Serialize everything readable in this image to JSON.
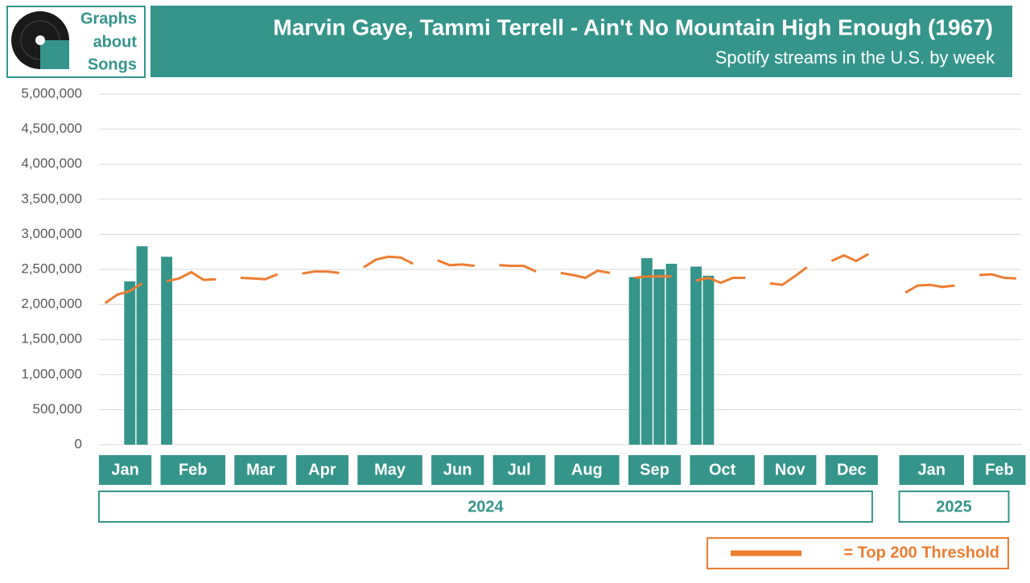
{
  "logo": [
    "Graphs",
    "about",
    "Songs"
  ],
  "chart_data": {
    "type": "bar",
    "title": "Marvin Gaye, Tammi Terrell - Ain't No Mountain High Enough (1967)",
    "subtitle": "Spotify streams in the U.S. by week",
    "ylim": [
      0,
      5000000
    ],
    "yticks": [
      0,
      {
        "value": 500000,
        "label": "500,000"
      },
      {
        "value": 1000000,
        "label": "1,000,000"
      },
      {
        "value": 1500000,
        "label": "1,500,000"
      },
      {
        "value": 2000000,
        "label": "2,000,000"
      },
      {
        "value": 2500000,
        "label": "2,500,000"
      },
      {
        "value": 3000000,
        "label": "3,000,000"
      },
      {
        "value": 3500000,
        "label": "3,500,000"
      },
      {
        "value": 4000000,
        "label": "4,000,000"
      },
      {
        "value": 4500000,
        "label": "4,500,000"
      },
      {
        "value": 5000000,
        "label": "5,000,000"
      }
    ],
    "grid": true,
    "bar_color": "#35958b",
    "line_color": "#ed7d31",
    "legend": "= Top 200 Threshold",
    "years": [
      {
        "label": "2024",
        "months": [
          {
            "label": "Jan",
            "streams": [
              null,
              null,
              2330000,
              2830000
            ],
            "threshold": [
              2020000,
              2140000,
              2190000,
              2300000
            ]
          },
          {
            "label": "Feb",
            "streams": [
              2680000,
              null,
              null,
              null,
              null
            ],
            "threshold": [
              2330000,
              2370000,
              2460000,
              2350000,
              2360000
            ]
          },
          {
            "label": "Mar",
            "streams": [
              null,
              null,
              null,
              null
            ],
            "threshold": [
              2380000,
              2370000,
              2360000,
              2430000
            ]
          },
          {
            "label": "Apr",
            "streams": [
              null,
              null,
              null,
              null
            ],
            "threshold": [
              2440000,
              2470000,
              2470000,
              2450000
            ]
          },
          {
            "label": "May",
            "streams": [
              null,
              null,
              null,
              null,
              null
            ],
            "threshold": [
              2530000,
              2640000,
              2680000,
              2670000,
              2580000
            ]
          },
          {
            "label": "Jun",
            "streams": [
              null,
              null,
              null,
              null
            ],
            "threshold": [
              2630000,
              2560000,
              2570000,
              2550000
            ]
          },
          {
            "label": "Jul",
            "streams": [
              null,
              null,
              null,
              null
            ],
            "threshold": [
              2560000,
              2550000,
              2550000,
              2470000
            ]
          },
          {
            "label": "Aug",
            "streams": [
              null,
              null,
              null,
              null,
              null
            ],
            "threshold": [
              2450000,
              2420000,
              2380000,
              2480000,
              2450000
            ]
          },
          {
            "label": "Sep",
            "streams": [
              2390000,
              2660000,
              2500000,
              2580000
            ],
            "threshold": [
              2380000,
              2400000,
              2400000,
              2400000
            ]
          },
          {
            "label": "Oct",
            "streams": [
              2540000,
              2410000,
              null,
              null,
              null
            ],
            "threshold": [
              2340000,
              2380000,
              2310000,
              2380000,
              2380000
            ]
          },
          {
            "label": "Nov",
            "streams": [
              null,
              null,
              null,
              null
            ],
            "threshold": [
              2300000,
              2280000,
              2400000,
              2530000
            ]
          },
          {
            "label": "Dec",
            "streams": [
              null,
              null,
              null,
              null
            ],
            "threshold": [
              2620000,
              2700000,
              2620000,
              2720000
            ]
          }
        ]
      },
      {
        "label": "2025",
        "months": [
          {
            "label": "Jan",
            "streams": [
              null,
              null,
              null,
              null,
              null
            ],
            "threshold": [
              2170000,
              2270000,
              2280000,
              2250000,
              2270000
            ]
          },
          {
            "label": "Feb",
            "streams": [
              null,
              null,
              null,
              null
            ],
            "threshold": [
              2420000,
              2430000,
              2380000,
              2370000
            ]
          }
        ]
      }
    ]
  }
}
